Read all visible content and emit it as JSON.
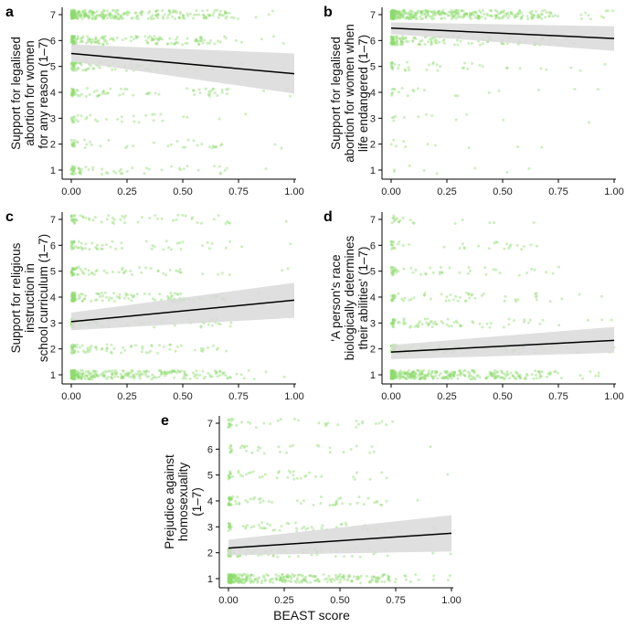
{
  "figure": {
    "x_axis_title": "BEAST score",
    "colors": {
      "points": "#8fdc6e",
      "ribbon": "#d9d9d9",
      "line": "#000000",
      "axis": "#000000"
    }
  },
  "chart_data": [
    {
      "panel": "a",
      "type": "scatter",
      "ylabel": [
        "Support for legalised",
        "abortion for women",
        "for any reason (1–7)"
      ],
      "xlim": [
        0,
        1
      ],
      "ylim": [
        1,
        7
      ],
      "xticks": [
        "0.00",
        "0.25",
        "0.50",
        "0.75",
        "1.00"
      ],
      "yticks": [
        "1",
        "2",
        "3",
        "4",
        "5",
        "6",
        "7"
      ],
      "fit": {
        "x": [
          0,
          1
        ],
        "y": [
          5.5,
          4.72
        ]
      },
      "ci": {
        "x": [
          0,
          1
        ],
        "lower": [
          5.2,
          3.95
        ],
        "upper": [
          5.85,
          5.5
        ]
      },
      "points_by_level": {
        "1": 60,
        "2": 45,
        "3": 35,
        "4": 80,
        "5": 90,
        "6": 170,
        "7": 300
      }
    },
    {
      "panel": "b",
      "type": "scatter",
      "ylabel": [
        "Support for legalised",
        "abortion for women when",
        "life endangered (1–7)"
      ],
      "xlim": [
        0,
        1
      ],
      "ylim": [
        1,
        7
      ],
      "xticks": [
        "0.00",
        "0.25",
        "0.50",
        "0.75",
        "1.00"
      ],
      "yticks": [
        "1",
        "2",
        "3",
        "4",
        "5",
        "6",
        "7"
      ],
      "fit": {
        "x": [
          0,
          1
        ],
        "y": [
          6.48,
          6.08
        ]
      },
      "ci": {
        "x": [
          0,
          1
        ],
        "lower": [
          6.25,
          5.6
        ],
        "upper": [
          6.7,
          6.55
        ]
      },
      "points_by_level": {
        "1": 8,
        "2": 10,
        "3": 12,
        "4": 20,
        "5": 40,
        "6": 150,
        "7": 420
      }
    },
    {
      "panel": "c",
      "type": "scatter",
      "ylabel": [
        "Support for religious",
        "instruction in",
        "school curriculum (1–7)"
      ],
      "xlim": [
        0,
        1
      ],
      "ylim": [
        1,
        7
      ],
      "xticks": [
        "0.00",
        "0.25",
        "0.50",
        "0.75",
        "1.00"
      ],
      "yticks": [
        "1",
        "2",
        "3",
        "4",
        "5",
        "6",
        "7"
      ],
      "fit": {
        "x": [
          0,
          1
        ],
        "y": [
          3.05,
          3.88
        ]
      },
      "ci": {
        "x": [
          0,
          1
        ],
        "lower": [
          2.72,
          3.2
        ],
        "upper": [
          3.4,
          4.55
        ]
      },
      "points_by_level": {
        "1": 300,
        "2": 80,
        "3": 70,
        "4": 130,
        "5": 70,
        "6": 60,
        "7": 60
      }
    },
    {
      "panel": "d",
      "type": "scatter",
      "ylabel": [
        "'A person's race",
        "biologically determines",
        "their abilities' (1–7)"
      ],
      "xlim": [
        0,
        1
      ],
      "ylim": [
        1,
        7
      ],
      "xticks": [
        "0.00",
        "0.25",
        "0.50",
        "0.75",
        "1.00"
      ],
      "yticks": [
        "1",
        "2",
        "3",
        "4",
        "5",
        "6",
        "7"
      ],
      "fit": {
        "x": [
          0,
          1
        ],
        "y": [
          1.88,
          2.33
        ]
      },
      "ci": {
        "x": [
          0,
          1
        ],
        "lower": [
          1.6,
          1.85
        ],
        "upper": [
          2.15,
          2.85
        ]
      },
      "points_by_level": {
        "1": 380,
        "2": 110,
        "3": 80,
        "4": 60,
        "5": 50,
        "6": 35,
        "7": 20
      }
    },
    {
      "panel": "e",
      "type": "scatter",
      "ylabel": [
        "Prejudice against",
        "homosexuality",
        "(1–7)"
      ],
      "xlabel": "BEAST score",
      "xlim": [
        0,
        1
      ],
      "ylim": [
        1,
        7
      ],
      "xticks": [
        "0.00",
        "0.25",
        "0.50",
        "0.75",
        "1.00"
      ],
      "yticks": [
        "1",
        "2",
        "3",
        "4",
        "5",
        "6",
        "7"
      ],
      "fit": {
        "x": [
          0,
          1
        ],
        "y": [
          2.18,
          2.75
        ]
      },
      "ci": {
        "x": [
          0,
          1
        ],
        "lower": [
          1.9,
          2.05
        ],
        "upper": [
          2.5,
          3.45
        ]
      },
      "points_by_level": {
        "1": 330,
        "2": 90,
        "3": 60,
        "4": 70,
        "5": 45,
        "6": 35,
        "7": 40
      }
    }
  ]
}
